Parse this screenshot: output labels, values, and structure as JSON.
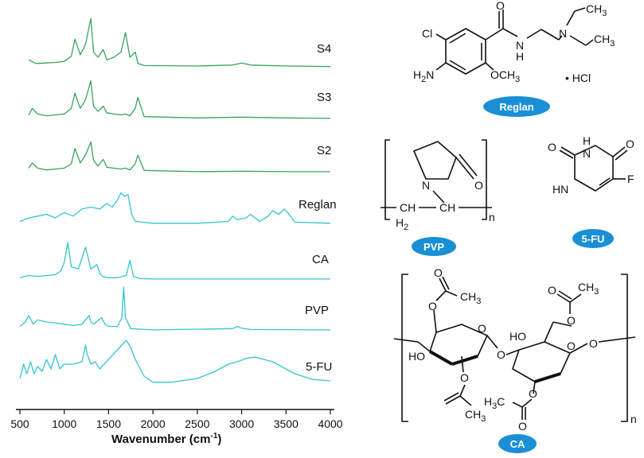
{
  "chart_data": {
    "type": "line",
    "xlabel": "Wavenumber (cm",
    "xlabel_sup": "-1",
    "xlabel_close": ")",
    "xlim": [
      500,
      4000
    ],
    "xticks": [
      500,
      1000,
      1500,
      2000,
      2500,
      3000,
      3500,
      4000
    ],
    "y_axis": "none",
    "grid": false,
    "series": [
      {
        "name": "S4",
        "color": "#3aa35c",
        "x": [
          600,
          680,
          800,
          900,
          1000,
          1080,
          1120,
          1180,
          1240,
          1300,
          1330,
          1380,
          1440,
          1480,
          1560,
          1640,
          1690,
          1740,
          1800,
          1830,
          1900,
          2500,
          2900,
          3000,
          3100,
          3500,
          4000
        ],
        "y": [
          0.15,
          0.08,
          0.09,
          0.1,
          0.12,
          0.22,
          0.55,
          0.25,
          0.45,
          0.95,
          0.3,
          0.2,
          0.35,
          0.15,
          0.2,
          0.3,
          0.68,
          0.2,
          0.3,
          0.08,
          0.04,
          0.03,
          0.05,
          0.09,
          0.05,
          0.03,
          0.02
        ]
      },
      {
        "name": "S3",
        "color": "#3aa35c",
        "x": [
          600,
          640,
          700,
          800,
          900,
          1000,
          1080,
          1120,
          1180,
          1240,
          1300,
          1330,
          1380,
          1440,
          1480,
          1560,
          1640,
          1690,
          1740,
          1800,
          1830,
          1900,
          2500,
          3000,
          3500,
          4000
        ],
        "y": [
          0.1,
          0.25,
          0.12,
          0.08,
          0.1,
          0.12,
          0.25,
          0.6,
          0.25,
          0.45,
          0.88,
          0.3,
          0.18,
          0.3,
          0.15,
          0.12,
          0.1,
          0.12,
          0.08,
          0.25,
          0.5,
          0.06,
          0.03,
          0.05,
          0.03,
          0.02
        ]
      },
      {
        "name": "S2",
        "color": "#3aa35c",
        "x": [
          600,
          640,
          700,
          800,
          900,
          1000,
          1080,
          1120,
          1180,
          1240,
          1300,
          1330,
          1380,
          1440,
          1480,
          1560,
          1640,
          1690,
          1740,
          1800,
          1830,
          1900,
          2500,
          3000,
          3500,
          4000
        ],
        "y": [
          0.1,
          0.22,
          0.1,
          0.06,
          0.08,
          0.1,
          0.2,
          0.55,
          0.22,
          0.4,
          0.7,
          0.28,
          0.15,
          0.3,
          0.12,
          0.1,
          0.08,
          0.1,
          0.06,
          0.2,
          0.4,
          0.05,
          0.02,
          0.03,
          0.02,
          0.02
        ]
      },
      {
        "name": "Reglan",
        "color": "#35c4cf",
        "x": [
          500,
          600,
          700,
          800,
          900,
          1000,
          1100,
          1200,
          1300,
          1400,
          1480,
          1540,
          1600,
          1640,
          1680,
          1720,
          1760,
          1800,
          2000,
          2500,
          2850,
          2900,
          2950,
          3050,
          3100,
          3200,
          3300,
          3350,
          3420,
          3480,
          3520,
          3600,
          4000
        ],
        "y": [
          0.1,
          0.2,
          0.25,
          0.3,
          0.2,
          0.35,
          0.25,
          0.45,
          0.5,
          0.45,
          0.6,
          0.5,
          0.7,
          0.9,
          0.8,
          0.85,
          0.3,
          0.1,
          0.05,
          0.05,
          0.1,
          0.25,
          0.15,
          0.2,
          0.3,
          0.1,
          0.25,
          0.4,
          0.3,
          0.45,
          0.35,
          0.08,
          0.05
        ]
      },
      {
        "name": "CA",
        "color": "#35c4cf",
        "x": [
          500,
          600,
          700,
          800,
          900,
          960,
          1000,
          1040,
          1080,
          1160,
          1200,
          1240,
          1300,
          1370,
          1400,
          1430,
          1500,
          1600,
          1700,
          1740,
          1780,
          1850,
          2000,
          4000
        ],
        "y": [
          0.05,
          0.1,
          0.08,
          0.1,
          0.12,
          0.2,
          0.4,
          0.85,
          0.3,
          0.25,
          0.5,
          0.75,
          0.25,
          0.35,
          0.15,
          0.08,
          0.05,
          0.05,
          0.1,
          0.45,
          0.08,
          0.03,
          0.02,
          0.02
        ]
      },
      {
        "name": "PVP",
        "color": "#35c4cf",
        "x": [
          500,
          560,
          600,
          650,
          700,
          800,
          900,
          1000,
          1100,
          1200,
          1280,
          1300,
          1330,
          1420,
          1460,
          1500,
          1600,
          1650,
          1670,
          1690,
          1750,
          2000,
          2900,
          2950,
          3000,
          3100,
          4000
        ],
        "y": [
          0.1,
          0.2,
          0.35,
          0.15,
          0.25,
          0.2,
          0.18,
          0.15,
          0.12,
          0.15,
          0.35,
          0.2,
          0.15,
          0.3,
          0.15,
          0.1,
          0.1,
          0.3,
          1.0,
          0.3,
          0.05,
          0.02,
          0.05,
          0.1,
          0.06,
          0.03,
          0.02
        ]
      },
      {
        "name": "5-FU",
        "color": "#35c4cf",
        "x": [
          500,
          540,
          580,
          620,
          660,
          700,
          750,
          800,
          850,
          900,
          950,
          1000,
          1100,
          1200,
          1240,
          1260,
          1300,
          1350,
          1400,
          1450,
          1500,
          1550,
          1600,
          1650,
          1700,
          1750,
          1800,
          1900,
          2000,
          2200,
          2500,
          2700,
          2850,
          2950,
          3050,
          3150,
          3250,
          3350,
          3450,
          3600,
          3800,
          4000
        ],
        "y": [
          0.2,
          0.5,
          0.3,
          0.55,
          0.3,
          0.45,
          0.35,
          0.6,
          0.4,
          0.7,
          0.4,
          0.5,
          0.5,
          0.55,
          0.9,
          0.7,
          0.5,
          0.55,
          0.4,
          0.5,
          0.6,
          0.7,
          0.8,
          0.9,
          1.0,
          0.85,
          0.6,
          0.25,
          0.12,
          0.12,
          0.2,
          0.35,
          0.5,
          0.55,
          0.62,
          0.65,
          0.6,
          0.55,
          0.45,
          0.3,
          0.18,
          0.15
        ]
      }
    ]
  },
  "structures": {
    "reglan": {
      "badge": "Reglan",
      "atoms": {
        "cl": "Cl",
        "o": "O",
        "nh": "N",
        "h": "H",
        "n": "N",
        "ch3_top": "CH",
        "ch3_top_sub": "3",
        "ch3_right": "CH",
        "ch3_right_sub": "3",
        "h2n": "H",
        "h2n_sub": "2",
        "h2n_n": "N",
        "och3": "OCH",
        "och3_sub": "3",
        "hcl": "• HCl"
      }
    },
    "pvp": {
      "badge": "PVP",
      "atoms": {
        "n": "N",
        "o": "O",
        "ch2": "CH",
        "h2": "H",
        "h2_sub": "2",
        "ch": "CH",
        "n_sub": "n"
      }
    },
    "fu": {
      "badge": "5-FU",
      "atoms": {
        "o1": "O",
        "nh1_h": "H",
        "nh1_n": "N",
        "o2": "O",
        "nh2_h": "H",
        "nh2_n": "N",
        "f": "F"
      }
    },
    "ca": {
      "badge": "CA",
      "atoms": {
        "ho1": "HO",
        "o1": "O",
        "o2": "O",
        "ch3_1": "CH",
        "ch3_1_sub": "3",
        "ch3_2": "CH",
        "ch3_2_sub": "3",
        "o3": "O",
        "o4": "O",
        "ho2": "HO",
        "o5": "O",
        "o6": "O",
        "o7": "O",
        "o8": "O",
        "ch3_3": "CH",
        "ch3_3_sub": "3",
        "h3c": "H",
        "h3c_sub": "3",
        "h3c_c": "C",
        "o9": "O",
        "o10": "O",
        "o11": "O",
        "n_sub": "n"
      }
    }
  }
}
